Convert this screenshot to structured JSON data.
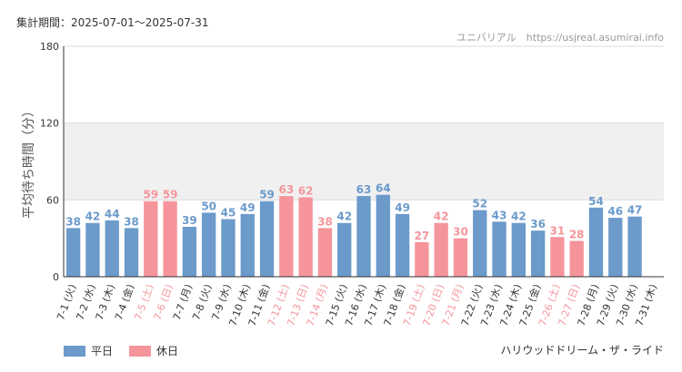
{
  "header": {
    "period": "集計期間：2025-07-01～2025-07-31",
    "site": "ユニバリアル　https://usjreal.asumirai.info"
  },
  "legend": {
    "weekday": "平日",
    "holiday": "休日"
  },
  "attraction": "ハリウッドドリーム・ザ・ライド",
  "colors": {
    "weekday": "#6b9acb",
    "holiday": "#f5959b",
    "band": "#f0f0f0",
    "grid": "#dddddd"
  },
  "chart_data": {
    "type": "bar",
    "ylabel": "平均待ち時間（分）",
    "ylim": [
      0,
      180
    ],
    "yticks": [
      0,
      60,
      120,
      180
    ],
    "band": [
      60,
      120
    ],
    "categories": [
      "7-1 (火)",
      "7-2 (水)",
      "7-3 (木)",
      "7-4 (金)",
      "7-5 (土)",
      "7-6 (日)",
      "7-7 (月)",
      "7-8 (火)",
      "7-9 (水)",
      "7-10 (木)",
      "7-11 (金)",
      "7-12 (土)",
      "7-13 (日)",
      "7-14 (月)",
      "7-15 (火)",
      "7-16 (水)",
      "7-17 (木)",
      "7-18 (金)",
      "7-19 (土)",
      "7-20 (日)",
      "7-21 (月)",
      "7-22 (火)",
      "7-23 (水)",
      "7-24 (木)",
      "7-25 (金)",
      "7-26 (土)",
      "7-27 (日)",
      "7-28 (月)",
      "7-29 (火)",
      "7-30 (水)",
      "7-31 (木)"
    ],
    "values": [
      38,
      42,
      44,
      38,
      59,
      59,
      39,
      50,
      45,
      49,
      59,
      63,
      62,
      38,
      42,
      63,
      64,
      49,
      27,
      42,
      30,
      52,
      43,
      42,
      36,
      31,
      28,
      54,
      46,
      47,
      null
    ],
    "holiday": [
      false,
      false,
      false,
      false,
      true,
      true,
      false,
      false,
      false,
      false,
      false,
      true,
      true,
      true,
      false,
      false,
      false,
      false,
      true,
      true,
      true,
      false,
      false,
      false,
      false,
      true,
      true,
      false,
      false,
      false,
      false
    ]
  }
}
